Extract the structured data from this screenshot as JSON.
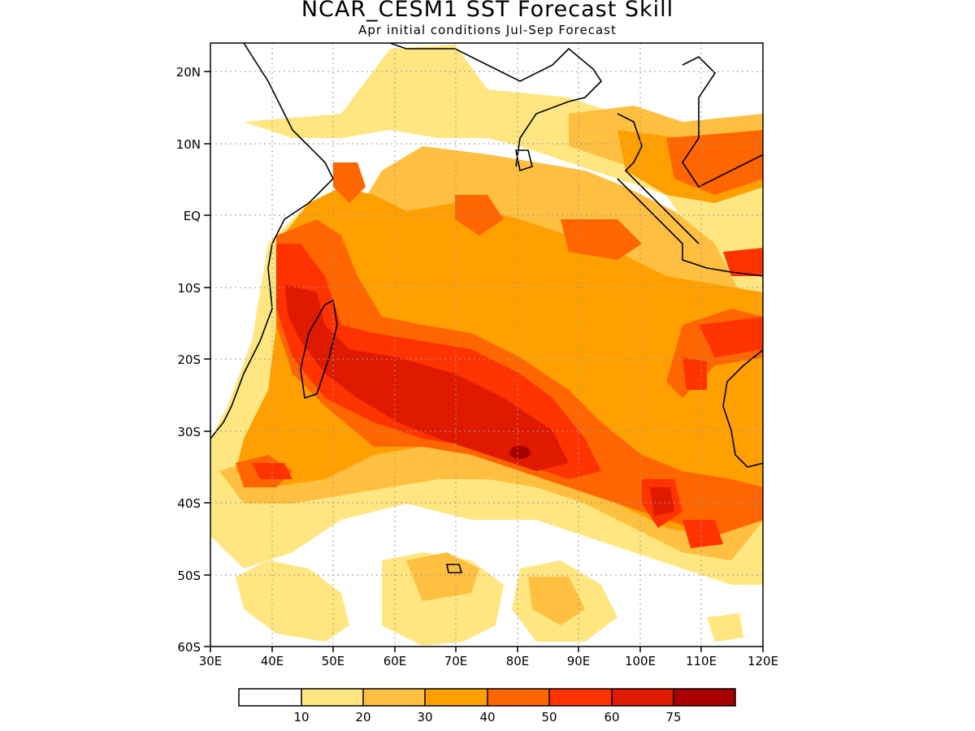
{
  "title": "NCAR_CESM1 SST Forecast Skill",
  "subtitle": "Apr initial conditions  Jul-Sep Forecast",
  "map": {
    "lon_range": [
      30,
      120
    ],
    "lat_range": [
      -60,
      24
    ],
    "lat_ticks": [
      {
        "value": 20,
        "label": "20N"
      },
      {
        "value": 10,
        "label": "10N"
      },
      {
        "value": 0,
        "label": "EQ"
      },
      {
        "value": -10,
        "label": "10S"
      },
      {
        "value": -20,
        "label": "20S"
      },
      {
        "value": -30,
        "label": "30S"
      },
      {
        "value": -40,
        "label": "40S"
      },
      {
        "value": -50,
        "label": "50S"
      },
      {
        "value": -60,
        "label": "60S"
      }
    ],
    "lon_ticks": [
      {
        "value": 30,
        "label": "30E"
      },
      {
        "value": 40,
        "label": "40E"
      },
      {
        "value": 50,
        "label": "50E"
      },
      {
        "value": 60,
        "label": "60E"
      },
      {
        "value": 70,
        "label": "70E"
      },
      {
        "value": 80,
        "label": "80E"
      },
      {
        "value": 90,
        "label": "90E"
      },
      {
        "value": 100,
        "label": "100E"
      },
      {
        "value": 110,
        "label": "110E"
      },
      {
        "value": 120,
        "label": "120E"
      }
    ],
    "gridlines": "dotted"
  },
  "colorbar": {
    "colors": [
      "#ffffff",
      "#ffe680",
      "#ffbf40",
      "#ff9f00",
      "#ff6600",
      "#ff3300",
      "#e01a00",
      "#a80000"
    ],
    "labels": [
      "10",
      "20",
      "30",
      "40",
      "50",
      "60",
      "75"
    ]
  }
}
